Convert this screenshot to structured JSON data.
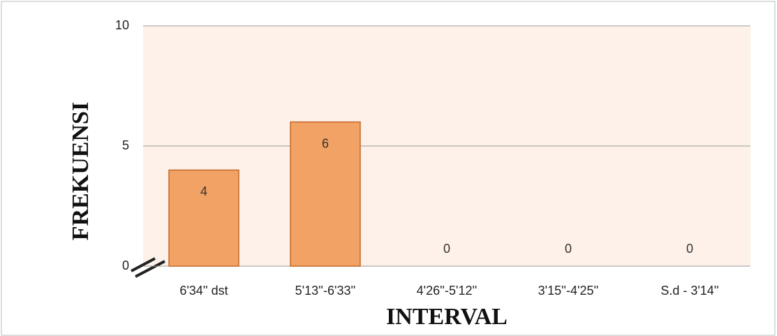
{
  "chart_data": {
    "type": "bar",
    "categories": [
      "6'34'' dst",
      "5'13''-6'33''",
      "4'26''-5'12''",
      "3'15''-4'25''",
      "S.d - 3'14''"
    ],
    "values": [
      4,
      6,
      0,
      0,
      0
    ],
    "color": "#f2a264",
    "xlabel": "INTERVAL",
    "ylabel": "FREKUENSI",
    "ylim": [
      0,
      10
    ],
    "yticks": [
      0,
      5,
      10
    ],
    "grid": true
  }
}
